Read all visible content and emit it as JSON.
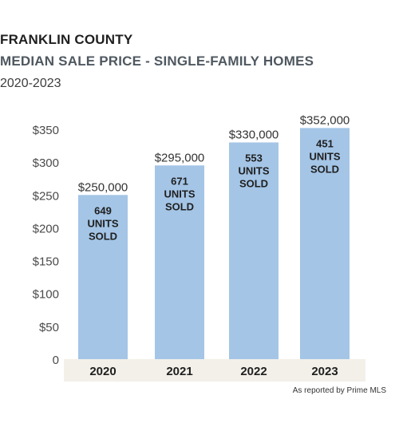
{
  "title": "FRANKLIN COUNTY",
  "subtitle": "MEDIAN SALE PRICE - SINGLE-FAMILY HOMES",
  "period": "2020-2023",
  "source_note": "As reported by Prime MLS",
  "colors": {
    "bar": "#a4c5e6",
    "axis_band": "#f3f0e9",
    "text": "#1f1f1f",
    "tick": "#4a4a4a"
  },
  "chart_data": {
    "type": "bar",
    "categories": [
      "2020",
      "2021",
      "2022",
      "2023"
    ],
    "values": [
      250000,
      295000,
      330000,
      352000
    ],
    "value_labels": [
      "$250,000",
      "$295,000",
      "$330,000",
      "$352,000"
    ],
    "units_sold": [
      649,
      671,
      553,
      451
    ],
    "units_label_lines": [
      "UNITS",
      "SOLD"
    ],
    "ylim": [
      0,
      350000
    ],
    "yticks": [
      0,
      50000,
      100000,
      150000,
      200000,
      250000,
      300000,
      350000
    ],
    "ytick_labels": [
      "0",
      "$50",
      "$100",
      "$150",
      "$200",
      "$250",
      "$300",
      "$350"
    ],
    "grid": false,
    "legend": "none"
  }
}
